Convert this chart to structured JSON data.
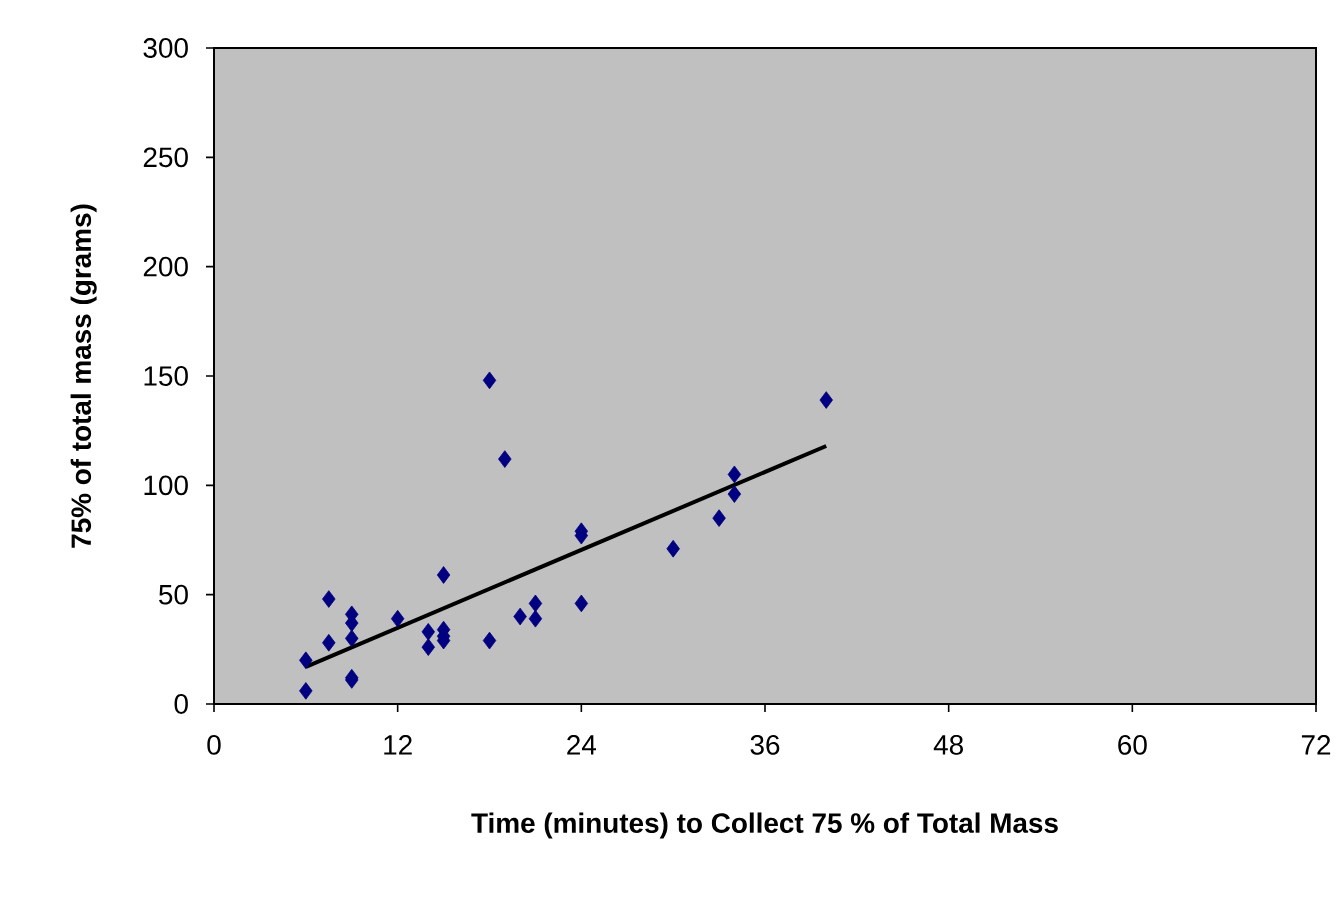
{
  "chart_data": {
    "type": "scatter",
    "xlabel": "Time (minutes) to Collect 75 % of Total Mass",
    "ylabel": "75% of total mass (grams)",
    "xlim": [
      0,
      72
    ],
    "ylim": [
      0,
      300
    ],
    "xticks": [
      0,
      12,
      24,
      36,
      48,
      60,
      72
    ],
    "yticks": [
      0,
      50,
      100,
      150,
      200,
      250,
      300
    ],
    "series": [
      {
        "marker": "diamond",
        "color": "#000080",
        "x": [
          6,
          6,
          7.5,
          7.5,
          9,
          9,
          9,
          9,
          9,
          12,
          14,
          14,
          15,
          15,
          15,
          15,
          18,
          18,
          19,
          20,
          21,
          21,
          24,
          24,
          24,
          30,
          33,
          34,
          34,
          40
        ],
        "values": [
          20,
          6,
          48,
          28,
          41,
          37,
          30,
          12,
          11,
          39,
          33,
          26,
          59,
          34,
          31,
          29,
          148,
          29,
          112,
          40,
          46,
          39,
          79,
          77,
          46,
          71,
          85,
          105,
          96,
          139
        ]
      },
      {
        "type": "line",
        "marker": "none",
        "line_style": "solid",
        "color": "#000000",
        "x": [
          6,
          40
        ],
        "values": [
          17,
          118
        ]
      }
    ]
  }
}
